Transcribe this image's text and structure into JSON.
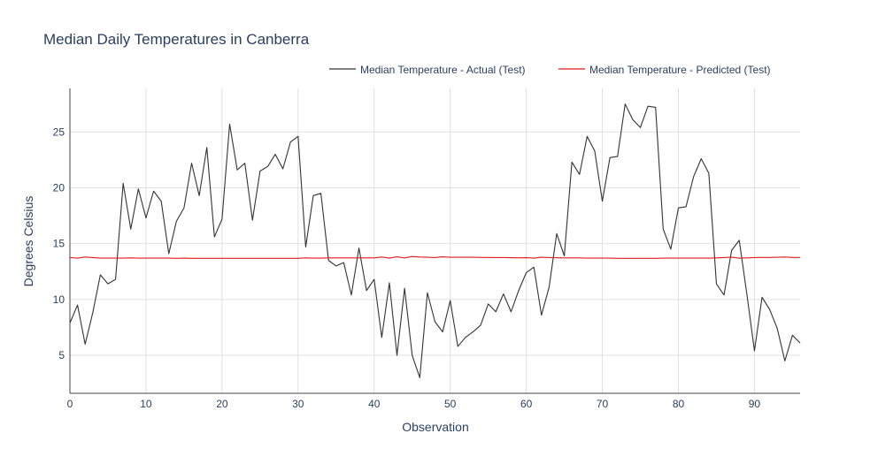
{
  "chart_data": {
    "type": "line",
    "title": "Median Daily Temperatures in Canberra",
    "xlabel": "Observation",
    "ylabel": "Degrees Celsius",
    "xlim": [
      0,
      96
    ],
    "ylim": [
      1.6,
      28.9
    ],
    "xticks": [
      0,
      10,
      20,
      30,
      40,
      50,
      60,
      70,
      80,
      90
    ],
    "yticks": [
      5,
      10,
      15,
      20,
      25
    ],
    "grid": true,
    "legend_position": "top-right",
    "x": [
      0,
      1,
      2,
      3,
      4,
      5,
      6,
      7,
      8,
      9,
      10,
      11,
      12,
      13,
      14,
      15,
      16,
      17,
      18,
      19,
      20,
      21,
      22,
      23,
      24,
      25,
      26,
      27,
      28,
      29,
      30,
      31,
      32,
      33,
      34,
      35,
      36,
      37,
      38,
      39,
      40,
      41,
      42,
      43,
      44,
      45,
      46,
      47,
      48,
      49,
      50,
      51,
      52,
      53,
      54,
      55,
      56,
      57,
      58,
      59,
      60,
      61,
      62,
      63,
      64,
      65,
      66,
      67,
      68,
      69,
      70,
      71,
      72,
      73,
      74,
      75,
      76,
      77,
      78,
      79,
      80,
      81,
      82,
      83,
      84,
      85,
      86,
      87,
      88,
      89,
      90,
      91,
      92,
      93,
      94,
      95,
      96
    ],
    "series": [
      {
        "name": "Median Temperature - Actual (Test)",
        "color": "#333333",
        "values": [
          7.9,
          9.5,
          6.0,
          8.8,
          12.2,
          11.4,
          11.8,
          20.4,
          16.3,
          19.9,
          17.3,
          19.7,
          18.8,
          14.1,
          17.0,
          18.2,
          22.2,
          19.3,
          23.6,
          15.6,
          17.2,
          25.7,
          21.6,
          22.2,
          17.1,
          21.5,
          21.9,
          23.0,
          21.7,
          24.1,
          24.6,
          14.7,
          19.3,
          19.5,
          13.5,
          13.0,
          13.3,
          10.4,
          14.6,
          10.8,
          11.8,
          6.6,
          11.5,
          5.0,
          11.0,
          5.0,
          3.0,
          10.6,
          8.0,
          7.1,
          9.9,
          5.8,
          6.6,
          7.1,
          7.7,
          9.6,
          8.9,
          10.5,
          8.9,
          10.8,
          12.4,
          12.9,
          8.6,
          11.1,
          15.9,
          13.9,
          22.3,
          21.2,
          24.6,
          23.3,
          18.8,
          22.7,
          22.8,
          27.5,
          26.1,
          25.4,
          27.3,
          27.2,
          16.3,
          14.5,
          18.2,
          18.3,
          21.0,
          22.6,
          21.3,
          11.4,
          10.4,
          14.4,
          15.3,
          10.5,
          5.4,
          10.2,
          9.1,
          7.4,
          4.5,
          6.8,
          6.1
        ]
      },
      {
        "name": "Median Temperature - Predicted (Test)",
        "color": "#e31a1c",
        "values": [
          13.75,
          13.7,
          13.8,
          13.75,
          13.7,
          13.7,
          13.7,
          13.7,
          13.72,
          13.7,
          13.7,
          13.7,
          13.7,
          13.7,
          13.68,
          13.7,
          13.68,
          13.68,
          13.68,
          13.68,
          13.68,
          13.68,
          13.68,
          13.68,
          13.68,
          13.68,
          13.68,
          13.68,
          13.68,
          13.68,
          13.68,
          13.72,
          13.7,
          13.7,
          13.72,
          13.72,
          13.72,
          13.72,
          13.72,
          13.72,
          13.72,
          13.8,
          13.7,
          13.82,
          13.72,
          13.85,
          13.8,
          13.78,
          13.75,
          13.82,
          13.78,
          13.78,
          13.78,
          13.78,
          13.76,
          13.76,
          13.75,
          13.75,
          13.74,
          13.73,
          13.74,
          13.7,
          13.78,
          13.75,
          13.74,
          13.72,
          13.72,
          13.72,
          13.7,
          13.7,
          13.7,
          13.7,
          13.68,
          13.68,
          13.68,
          13.68,
          13.68,
          13.68,
          13.7,
          13.7,
          13.7,
          13.7,
          13.7,
          13.7,
          13.7,
          13.72,
          13.75,
          13.78,
          13.7,
          13.72,
          13.75,
          13.76,
          13.76,
          13.78,
          13.8,
          13.76,
          13.76
        ]
      }
    ]
  }
}
